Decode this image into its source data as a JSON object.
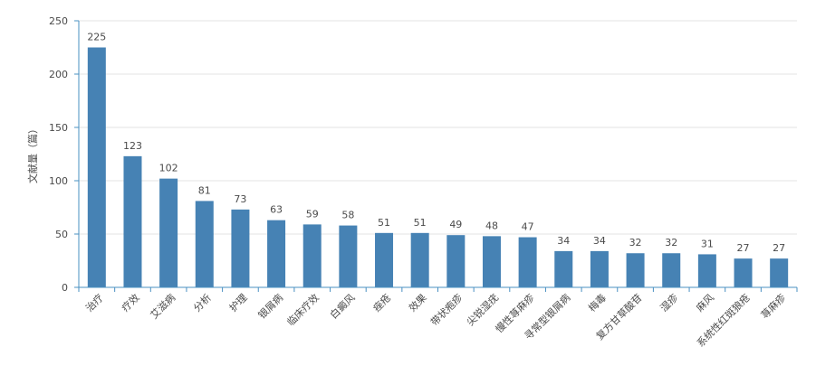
{
  "chart_data": {
    "type": "bar",
    "title": "",
    "xlabel": "",
    "ylabel": "文献量（篇）",
    "ylim": [
      0,
      250
    ],
    "yticks": [
      0,
      50,
      100,
      150,
      200,
      250
    ],
    "grid": true,
    "legend": "none",
    "categories": [
      "治疗",
      "疗效",
      "艾滋病",
      "分析",
      "护理",
      "银屑病",
      "临床疗效",
      "白癜风",
      "痤疮",
      "效果",
      "带状疱疹",
      "尖锐湿疣",
      "慢性荨麻疹",
      "寻常型银屑病",
      "梅毒",
      "复方甘草酸苷",
      "湿疹",
      "麻风",
      "系统性红斑狼疮",
      "荨麻疹"
    ],
    "values": [
      225,
      123,
      102,
      81,
      73,
      63,
      59,
      58,
      51,
      51,
      49,
      48,
      47,
      34,
      34,
      32,
      32,
      31,
      27,
      27
    ],
    "colors": {
      "bar": "#4682b4",
      "axis": "#4a90c2",
      "grid": "#e3e3e3",
      "text": "#4a4a4a"
    }
  }
}
